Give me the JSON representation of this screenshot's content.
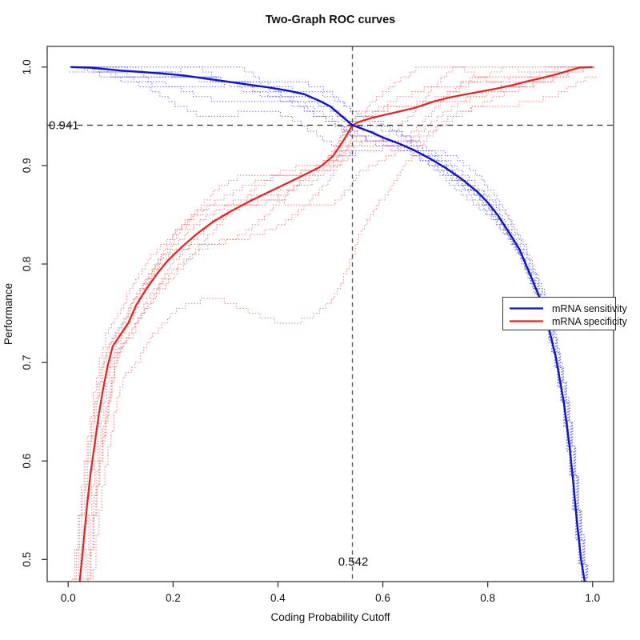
{
  "title": "Two-Graph ROC curves",
  "x_axis": {
    "label": "Coding Probability Cutoff",
    "ticks": [
      0.0,
      0.2,
      0.4,
      0.6,
      0.8,
      1.0
    ],
    "tick_labels": [
      "0.0",
      "0.2",
      "0.4",
      "0.6",
      "0.8",
      "1.0"
    ]
  },
  "y_axis": {
    "label": "Performance",
    "ticks": [
      0.5,
      0.6,
      0.7,
      0.8,
      0.9,
      1.0
    ],
    "tick_labels": [
      "0.5",
      "0.6",
      "0.7",
      "0.8",
      "0.9",
      "1.0"
    ]
  },
  "crosshair": {
    "x_value": 0.542,
    "x_label": "0.542",
    "y_value": 0.941,
    "y_label": "0.941",
    "h_color": "#2e2e2e",
    "v_color": "#5a5a5a"
  },
  "legend": {
    "items": [
      {
        "label": "mRNA sensitivity",
        "color": "#1111d1"
      },
      {
        "label": "mRNA specificity",
        "color": "#ef1d1d"
      }
    ]
  },
  "colors": {
    "sensitivity_mean": "#1111d1",
    "specificity_mean": "#ef1d1d",
    "sensitivity_replicate": "#7474f7",
    "specificity_replicate": "#ff7373",
    "axis": "#2b2b2b"
  },
  "chart_data": {
    "type": "line",
    "title": "Two-Graph ROC curves",
    "xlabel": "Coding Probability Cutoff",
    "ylabel": "Performance",
    "xlim": [
      -0.04,
      1.04
    ],
    "ylim": [
      0.4775,
      1.021
    ],
    "x_ticks": [
      0.0,
      0.2,
      0.4,
      0.6,
      0.8,
      1.0
    ],
    "y_ticks": [
      0.5,
      0.6,
      0.7,
      0.8,
      0.9,
      1.0
    ],
    "grid": false,
    "legend_position": "right-middle",
    "threshold": {
      "cutoff": 0.542,
      "performance": 0.941
    },
    "series": [
      {
        "name": "mRNA sensitivity",
        "role": "mean",
        "style": "solid",
        "points": [
          [
            0.005,
            1.0
          ],
          [
            0.04,
            0.9995
          ],
          [
            0.07,
            0.998
          ],
          [
            0.1,
            0.9965
          ],
          [
            0.14,
            0.995
          ],
          [
            0.18,
            0.9935
          ],
          [
            0.22,
            0.9915
          ],
          [
            0.26,
            0.9885
          ],
          [
            0.3,
            0.9855
          ],
          [
            0.34,
            0.9825
          ],
          [
            0.38,
            0.9795
          ],
          [
            0.42,
            0.976
          ],
          [
            0.45,
            0.9725
          ],
          [
            0.48,
            0.9655
          ],
          [
            0.5,
            0.96
          ],
          [
            0.52,
            0.951
          ],
          [
            0.542,
            0.941
          ],
          [
            0.56,
            0.9375
          ],
          [
            0.58,
            0.9335
          ],
          [
            0.6,
            0.9285
          ],
          [
            0.63,
            0.9225
          ],
          [
            0.66,
            0.9155
          ],
          [
            0.69,
            0.907
          ],
          [
            0.72,
            0.8975
          ],
          [
            0.75,
            0.8865
          ],
          [
            0.78,
            0.8735
          ],
          [
            0.8,
            0.8625
          ],
          [
            0.82,
            0.849
          ],
          [
            0.84,
            0.8325
          ],
          [
            0.86,
            0.8155
          ],
          [
            0.88,
            0.7905
          ],
          [
            0.9,
            0.7645
          ],
          [
            0.915,
            0.738
          ],
          [
            0.93,
            0.705
          ],
          [
            0.945,
            0.66
          ],
          [
            0.9555,
            0.617
          ],
          [
            0.963,
            0.579
          ],
          [
            0.97,
            0.539
          ],
          [
            0.978,
            0.4995
          ],
          [
            0.985,
            0.4775
          ]
        ]
      },
      {
        "name": "mRNA specificity",
        "role": "mean",
        "style": "solid",
        "points": [
          [
            0.022,
            0.4775
          ],
          [
            0.028,
            0.51
          ],
          [
            0.035,
            0.55
          ],
          [
            0.042,
            0.585
          ],
          [
            0.05,
            0.615
          ],
          [
            0.058,
            0.6455
          ],
          [
            0.066,
            0.6715
          ],
          [
            0.075,
            0.696
          ],
          [
            0.085,
            0.7165
          ],
          [
            0.1,
            0.7285
          ],
          [
            0.115,
            0.7405
          ],
          [
            0.13,
            0.7585
          ],
          [
            0.15,
            0.7755
          ],
          [
            0.17,
            0.7905
          ],
          [
            0.19,
            0.8035
          ],
          [
            0.215,
            0.8165
          ],
          [
            0.245,
            0.8305
          ],
          [
            0.275,
            0.8425
          ],
          [
            0.31,
            0.8535
          ],
          [
            0.345,
            0.8635
          ],
          [
            0.38,
            0.8725
          ],
          [
            0.415,
            0.8815
          ],
          [
            0.45,
            0.8905
          ],
          [
            0.48,
            0.8985
          ],
          [
            0.505,
            0.9095
          ],
          [
            0.525,
            0.9255
          ],
          [
            0.542,
            0.941
          ],
          [
            0.555,
            0.9445
          ],
          [
            0.58,
            0.9485
          ],
          [
            0.62,
            0.9535
          ],
          [
            0.66,
            0.9585
          ],
          [
            0.7,
            0.9655
          ],
          [
            0.73,
            0.9695
          ],
          [
            0.76,
            0.9725
          ],
          [
            0.79,
            0.9755
          ],
          [
            0.82,
            0.9785
          ],
          [
            0.85,
            0.982
          ],
          [
            0.875,
            0.9855
          ],
          [
            0.9,
            0.9885
          ],
          [
            0.93,
            0.9925
          ],
          [
            0.955,
            0.9965
          ],
          [
            0.975,
            0.9995
          ],
          [
            1.0,
            1.0
          ]
        ]
      },
      {
        "name": "sensitivity replicates",
        "role": "replicates",
        "style": "dotted",
        "count": 9,
        "offsets": [
          {
            "amp": 0.01,
            "bias": -0.2,
            "f1": 1.3,
            "p1": 0.5,
            "f2": 3.1,
            "p2": 1.2,
            "xj": -0.004
          },
          {
            "amp": 0.014,
            "bias": 0.2,
            "f1": 1.7,
            "p1": 2.3,
            "f2": 2.6,
            "p2": 4.0,
            "xj": 0.003
          },
          {
            "amp": 0.018,
            "bias": -0.4,
            "f1": 1.1,
            "p1": 4.1,
            "f2": 3.4,
            "p2": 0.7,
            "xj": -0.002
          },
          {
            "amp": 0.022,
            "bias": 0.3,
            "f1": 1.9,
            "p1": 1.0,
            "f2": 2.2,
            "p2": 2.9,
            "xj": 0.005
          },
          {
            "amp": 0.026,
            "bias": -0.9,
            "f1": 0.9,
            "p1": 3.3,
            "f2": 3.8,
            "p2": 5.1,
            "xj": -0.006
          },
          {
            "amp": 0.012,
            "bias": -0.5,
            "f1": 2.1,
            "p1": 5.2,
            "f2": 2.9,
            "p2": 1.8,
            "xj": 0.002
          },
          {
            "amp": 0.02,
            "bias": 0.1,
            "f1": 1.5,
            "p1": 0.2,
            "f2": 3.6,
            "p2": 3.5,
            "xj": 0.006
          },
          {
            "amp": 0.016,
            "bias": -0.6,
            "f1": 1.2,
            "p1": 2.8,
            "f2": 2.4,
            "p2": 0.3,
            "xj": -0.005
          },
          {
            "amp": 0.024,
            "bias": -0.1,
            "f1": 1.8,
            "p1": 4.6,
            "f2": 3.2,
            "p2": 2.2,
            "xj": 0.004
          }
        ]
      },
      {
        "name": "specificity replicates",
        "role": "replicates",
        "style": "dotted",
        "count": 9,
        "offsets": [
          {
            "amp": 0.018,
            "bias": 0.3,
            "f1": 1.4,
            "p1": 0.8,
            "f2": 3.0,
            "p2": 2.0,
            "xj": -0.008
          },
          {
            "amp": 0.03,
            "bias": -0.4,
            "f1": 1.1,
            "p1": 2.6,
            "f2": 2.7,
            "p2": 4.4,
            "xj": 0.01
          },
          {
            "amp": 0.022,
            "bias": 0.5,
            "f1": 1.8,
            "p1": 4.4,
            "f2": 3.5,
            "p2": 1.1,
            "xj": -0.012
          },
          {
            "amp": 0.04,
            "bias": -0.2,
            "f1": 0.9,
            "p1": 1.5,
            "f2": 2.3,
            "p2": 3.2,
            "xj": 0.014
          },
          {
            "amp": 0.085,
            "bias": -0.8,
            "f1": 0.8,
            "p1": 3.0,
            "f2": 2.0,
            "p2": 5.3,
            "xj": 0.02
          },
          {
            "amp": 0.026,
            "bias": 0.6,
            "f1": 2.0,
            "p1": 5.5,
            "f2": 3.1,
            "p2": 0.4,
            "xj": -0.015
          },
          {
            "amp": 0.034,
            "bias": 0.1,
            "f1": 1.3,
            "p1": 0.1,
            "f2": 3.7,
            "p2": 2.7,
            "xj": 0.006
          },
          {
            "amp": 0.028,
            "bias": -0.5,
            "f1": 1.6,
            "p1": 3.8,
            "f2": 2.5,
            "p2": 1.6,
            "xj": -0.004
          },
          {
            "amp": 0.045,
            "bias": 0.2,
            "f1": 1.0,
            "p1": 2.1,
            "f2": 3.3,
            "p2": 4.9,
            "xj": 0.016
          }
        ]
      }
    ]
  }
}
